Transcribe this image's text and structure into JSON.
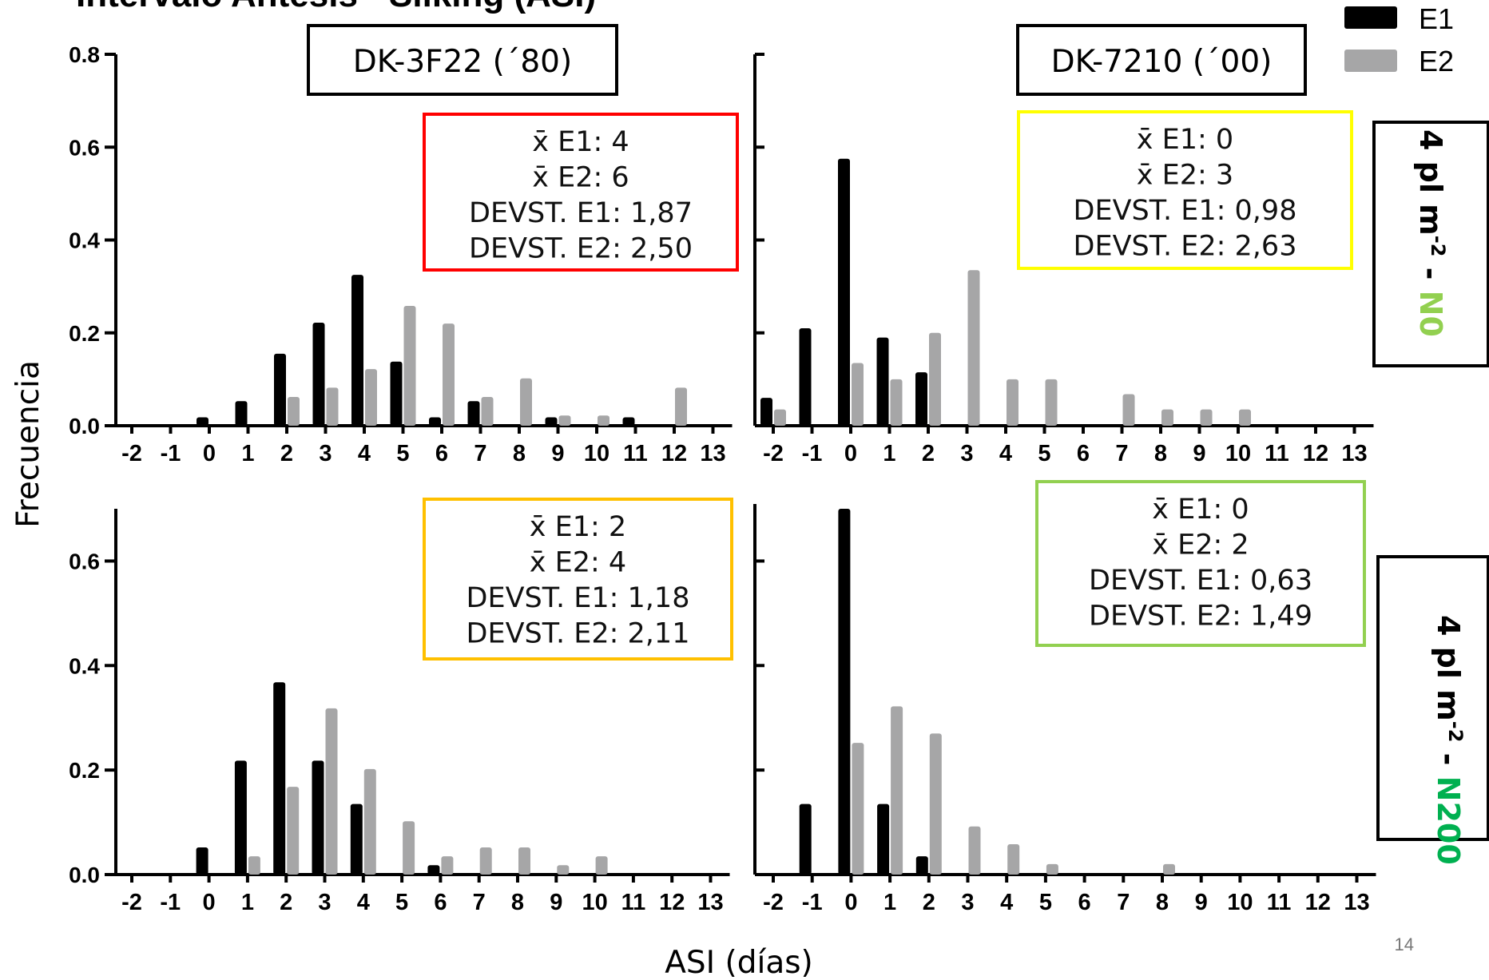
{
  "page_title": "Intervalo Antesis - Silking (ASI)",
  "page_number": "14",
  "colors": {
    "E1": "#000000",
    "E2": "#a6a6a7",
    "N0": "#92d050",
    "N200": "#00b050"
  },
  "legend": [
    {
      "name": "E1",
      "color": "#000000"
    },
    {
      "name": "E2",
      "color": "#a6a6a7"
    }
  ],
  "xlabel": "ASI (días)",
  "ylabel": "Frecuencia",
  "columns": [
    "DK-3F22 (´80)",
    "DK-7210 (´00)"
  ],
  "rows": [
    {
      "parts": [
        {
          "text": "4 pl m",
          "color": "#000000"
        },
        {
          "text": "-2",
          "color": "#000000",
          "sup": true
        },
        {
          "text": " - ",
          "color": "#000000"
        },
        {
          "text": "N0",
          "color": "#92d050"
        }
      ]
    },
    {
      "parts": [
        {
          "text": "4 pl m",
          "color": "#000000"
        },
        {
          "text": "-2",
          "color": "#000000",
          "sup": true
        },
        {
          "text": " - ",
          "color": "#000000"
        },
        {
          "text": "N200",
          "color": "#00b050"
        }
      ]
    }
  ],
  "chart_data": [
    {
      "type": "bar",
      "panel": "top-left",
      "categories": [
        "-2",
        "-1",
        "0",
        "1",
        "2",
        "3",
        "4",
        "5",
        "6",
        "7",
        "8",
        "9",
        "10",
        "11",
        "12",
        "13"
      ],
      "ylim": [
        0,
        0.8
      ],
      "yticks": [
        "0.0",
        "0.2",
        "0.4",
        "0.6",
        "0.8"
      ],
      "ytick_values": [
        0,
        0.2,
        0.4,
        0.6,
        0.8
      ],
      "series": [
        {
          "name": "E1",
          "values": [
            0,
            0,
            0.018,
            0.053,
            0.155,
            0.222,
            0.325,
            0.138,
            0.018,
            0.053,
            0,
            0.018,
            0,
            0.018,
            0,
            0
          ]
        },
        {
          "name": "E2",
          "values": [
            0,
            0,
            0,
            0,
            0.062,
            0.082,
            0.122,
            0.258,
            0.22,
            0.062,
            0.102,
            0.022,
            0.022,
            0,
            0.082,
            0
          ]
        }
      ],
      "stats": {
        "lines": [
          "x̄ E1: 4",
          "x̄ E2: 6",
          "DEVST. E1: 1,87",
          "DEVST. E2: 2,50"
        ],
        "border_color": "#ff0000"
      }
    },
    {
      "type": "bar",
      "panel": "top-right",
      "categories": [
        "-2",
        "-1",
        "0",
        "1",
        "2",
        "3",
        "4",
        "5",
        "6",
        "7",
        "8",
        "9",
        "10",
        "11",
        "12",
        "13"
      ],
      "ylim": [
        0,
        0.8
      ],
      "series": [
        {
          "name": "E1",
          "values": [
            0.06,
            0.21,
            0.575,
            0.19,
            0.115,
            0,
            0,
            0,
            0,
            0,
            0,
            0,
            0,
            0,
            0,
            0
          ]
        },
        {
          "name": "E2",
          "values": [
            0.035,
            0,
            0.135,
            0.1,
            0.2,
            0.335,
            0.1,
            0.1,
            0,
            0.068,
            0.035,
            0.035,
            0.035,
            0,
            0,
            0
          ]
        }
      ],
      "stats": {
        "lines": [
          "x̄ E1: 0",
          "x̄ E2: 3",
          "DEVST. E1: 0,98",
          "DEVST. E2: 2,63"
        ],
        "border_color": "#ffff00"
      }
    },
    {
      "type": "bar",
      "panel": "bottom-left",
      "categories": [
        "-2",
        "-1",
        "0",
        "1",
        "2",
        "3",
        "4",
        "5",
        "6",
        "7",
        "8",
        "9",
        "10",
        "11",
        "12",
        "13"
      ],
      "ylim": [
        0,
        0.7
      ],
      "yticks": [
        "0.0",
        "0.2",
        "0.4",
        "0.6"
      ],
      "ytick_values": [
        0,
        0.2,
        0.4,
        0.6
      ],
      "series": [
        {
          "name": "E1",
          "values": [
            0,
            0,
            0.052,
            0.218,
            0.368,
            0.218,
            0.135,
            0,
            0.018,
            0,
            0,
            0,
            0,
            0,
            0,
            0
          ]
        },
        {
          "name": "E2",
          "values": [
            0,
            0,
            0,
            0.035,
            0.168,
            0.318,
            0.202,
            0.102,
            0.035,
            0.052,
            0.052,
            0.018,
            0.035,
            0,
            0,
            0
          ]
        }
      ],
      "stats": {
        "lines": [
          "x̄ E1: 2",
          "x̄ E2: 4",
          "DEVST. E1: 1,18",
          "DEVST. E2: 2,11"
        ],
        "border_color": "#ffc000"
      }
    },
    {
      "type": "bar",
      "panel": "bottom-right",
      "categories": [
        "-2",
        "-1",
        "0",
        "1",
        "2",
        "3",
        "4",
        "5",
        "6",
        "7",
        "8",
        "9",
        "10",
        "11",
        "12",
        "13"
      ],
      "ylim": [
        0,
        0.7
      ],
      "series": [
        {
          "name": "E1",
          "values": [
            0,
            0.135,
            0.7,
            0.135,
            0.035,
            0,
            0,
            0,
            0,
            0,
            0,
            0,
            0,
            0,
            0,
            0
          ]
        },
        {
          "name": "E2",
          "values": [
            0,
            0,
            0.252,
            0.322,
            0.27,
            0.092,
            0.058,
            0.02,
            0,
            0,
            0.02,
            0,
            0,
            0,
            0,
            0
          ]
        }
      ],
      "stats": {
        "lines": [
          "x̄ E1: 0",
          "x̄ E2: 2",
          "DEVST. E1: 0,63",
          "DEVST. E2: 1,49"
        ],
        "border_color": "#92d050"
      }
    }
  ]
}
